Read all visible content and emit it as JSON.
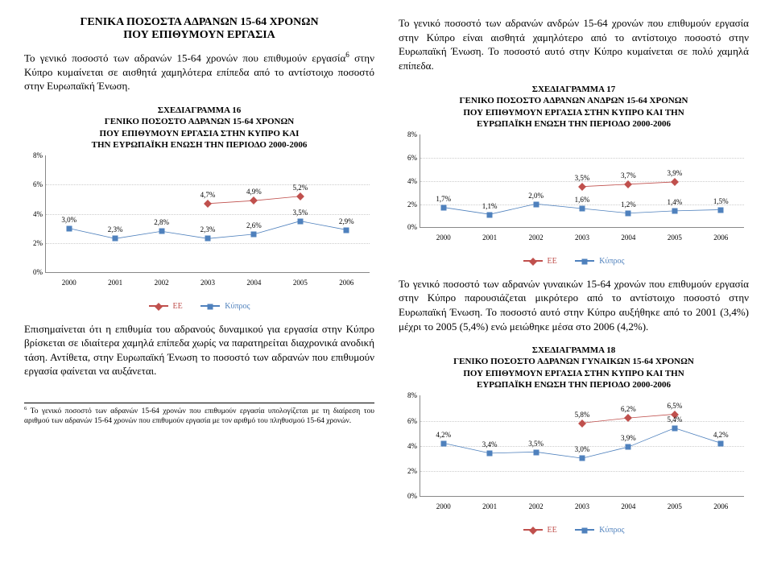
{
  "left": {
    "heading1": "ΓΕΝΙΚΑ ΠΟΣΟΣΤΑ ΑΔΡΑΝΩΝ 15-64 ΧΡΟΝΩΝ",
    "heading2": "ΠΟΥ ΕΠΙΘΥΜΟΥΝ ΕΡΓΑΣΙΑ",
    "para1a": "Το γενικό ποσοστό των αδρανών 15-64 χρονών που επιθυμούν εργασία",
    "para1b": " στην Κύπρο κυμαίνεται σε αισθητά χαμηλότερα επίπεδα από το αντίστοιχο ποσοστό στην Ευρωπαϊκή Ένωση.",
    "chart16": {
      "title1": "ΣΧΕΔΙΑΓΡΑΜΜΑ 16",
      "title2": "ΓΕΝΙΚΟ ΠΟΣΟΣΤΟ ΑΔΡΑΝΩΝ 15-64 ΧΡΟΝΩΝ",
      "title3": "ΠΟΥ ΕΠΙΘΥΜΟΥΝ ΕΡΓΑΣΙΑ ΣΤΗΝ ΚΥΠΡΟ ΚΑΙ",
      "title4": "ΤΗΝ ΕΥΡΩΠΑΪΚΗ ΕΝΩΣΗ ΤΗΝ ΠΕΡΙΟΔΟ 2000-2006",
      "ymax": 8,
      "ystep": 2,
      "years": [
        "2000",
        "2001",
        "2002",
        "2003",
        "2004",
        "2005",
        "2006"
      ],
      "series": [
        {
          "name": "ΕΕ",
          "color": "#c0504d",
          "marker": "dm",
          "vals": [
            null,
            null,
            null,
            4.7,
            4.9,
            5.2,
            null
          ],
          "labels": [
            "",
            "",
            "",
            "4,7%",
            "4,9%",
            "5,2%",
            ""
          ]
        },
        {
          "name": "Κύπρος",
          "color": "#4f81bd",
          "marker": "sq",
          "vals": [
            3.0,
            2.3,
            2.8,
            2.3,
            2.6,
            3.5,
            2.9
          ],
          "labels": [
            "3,0%",
            "2,3%",
            "2,8%",
            "2,3%",
            "2,6%",
            "3,5%",
            "2,9%"
          ]
        }
      ]
    },
    "para2": "Επισημαίνεται ότι η επιθυμία του αδρανούς δυναμικού για εργασία στην Κύπρο βρίσκεται σε ιδιαίτερα χαμηλά επίπεδα χωρίς να παρατηρείται διαχρονικά ανοδική τάση. Αντίθετα, στην Ευρωπαϊκή Ένωση το ποσοστό των αδρανών που επιθυμούν εργασία φαίνεται να αυξάνεται.",
    "footnote_num": "6",
    "footnote": " Το γενικό ποσοστό των αδρανών 15-64 χρονών που επιθυμούν εργασία υπολογίζεται με τη διαίρεση του αριθμού των αδρανών 15-64 χρονών που επιθυμούν εργασία με τον αριθμό του πληθυσμού 15-64 χρονών."
  },
  "right": {
    "para1": "Το γενικό ποσοστό των αδρανών ανδρών 15-64 χρονών που επιθυμούν εργασία στην Κύπρο είναι αισθητά χαμηλότερο από το αντίστοιχο ποσοστό στην Ευρωπαϊκή Ένωση. Το ποσοστό αυτό στην Κύπρο κυμαίνεται σε πολύ χαμηλά επίπεδα.",
    "chart17": {
      "title1": "ΣΧΕΔΙΑΓΡΑΜΜΑ 17",
      "title2": "ΓΕΝΙΚΟ ΠΟΣΟΣΤΟ ΑΔΡΑΝΩΝ ΑΝΔΡΩΝ 15-64 ΧΡΟΝΩΝ",
      "title3": "ΠΟΥ ΕΠΙΘΥΜΟΥΝ ΕΡΓΑΣΙΑ ΣΤΗΝ ΚΥΠΡΟ ΚΑΙ ΤΗΝ",
      "title4": "ΕΥΡΩΠΑΪΚΗ ΕΝΩΣΗ ΤΗΝ ΠΕΡΙΟΔΟ 2000-2006",
      "ymax": 8,
      "ystep": 2,
      "years": [
        "2000",
        "2001",
        "2002",
        "2003",
        "2004",
        "2005",
        "2006"
      ],
      "series": [
        {
          "name": "ΕΕ",
          "color": "#c0504d",
          "marker": "dm",
          "vals": [
            null,
            null,
            null,
            3.5,
            3.7,
            3.9,
            null
          ],
          "labels": [
            "",
            "",
            "",
            "3,5%",
            "3,7%",
            "3,9%",
            ""
          ]
        },
        {
          "name": "Κύπρος",
          "color": "#4f81bd",
          "marker": "sq",
          "vals": [
            1.7,
            1.1,
            2.0,
            1.6,
            1.2,
            1.4,
            1.5
          ],
          "labels": [
            "1,7%",
            "1,1%",
            "2,0%",
            "1,6%",
            "1,2%",
            "1,4%",
            "1,5%"
          ]
        }
      ]
    },
    "para2": "Το γενικό ποσοστό των αδρανών γυναικών 15-64 χρονών που επιθυμούν εργασία στην Κύπρο παρουσιάζεται μικρότερο από το αντίστοιχο ποσοστό στην Ευρωπαϊκή Ένωση. Το ποσοστό αυτό στην Κύπρο αυξήθηκε από το 2001 (3,4%) μέχρι το 2005 (5,4%) ενώ μειώθηκε μέσα στο 2006 (4,2%).",
    "chart18": {
      "title1": "ΣΧΕΔΙΑΓΡΑΜΜΑ 18",
      "title2": "ΓΕΝΙΚΟ ΠΟΣΟΣΤΟ ΑΔΡΑΝΩΝ ΓΥΝΑΙΚΩΝ 15-64 ΧΡΟΝΩΝ",
      "title3": "ΠΟΥ ΕΠΙΘΥΜΟΥΝ ΕΡΓΑΣΙΑ ΣΤΗΝ ΚΥΠΡΟ ΚΑΙ ΤΗΝ",
      "title4": "ΕΥΡΩΠΑΪΚΗ ΕΝΩΣΗ ΤΗΝ ΠΕΡΙΟΔΟ 2000-2006",
      "ymax": 8,
      "ystep": 2,
      "years": [
        "2000",
        "2001",
        "2002",
        "2003",
        "2004",
        "2005",
        "2006"
      ],
      "series": [
        {
          "name": "ΕΕ",
          "color": "#c0504d",
          "marker": "dm",
          "vals": [
            null,
            null,
            null,
            5.8,
            6.2,
            6.5,
            null
          ],
          "labels": [
            "",
            "",
            "",
            "5,8%",
            "6,2%",
            "6,5%",
            ""
          ]
        },
        {
          "name": "Κύπρος",
          "color": "#4f81bd",
          "marker": "sq",
          "vals": [
            4.2,
            3.4,
            3.5,
            3.0,
            3.9,
            5.4,
            4.2
          ],
          "labels": [
            "4,2%",
            "3,4%",
            "3,5%",
            "3,0%",
            "3,9%",
            "5,4%",
            "4,2%"
          ]
        }
      ]
    }
  },
  "legend": {
    "ee": "ΕΕ",
    "cy": "Κύπρος"
  }
}
